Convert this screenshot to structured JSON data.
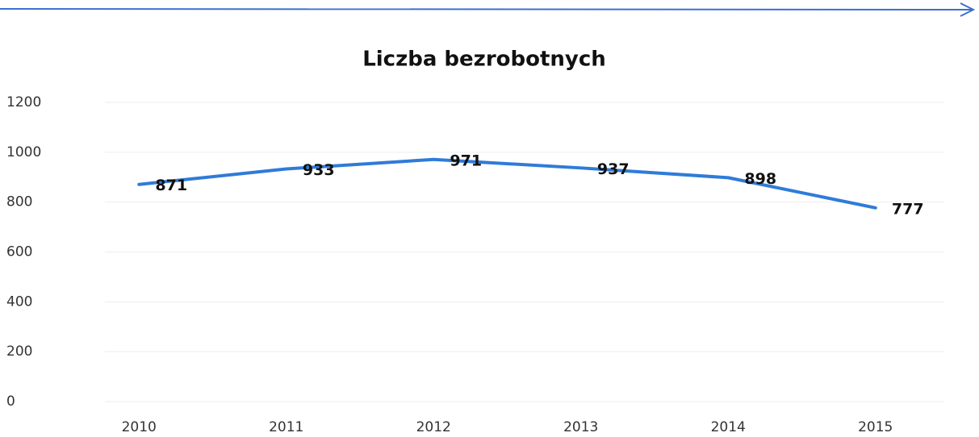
{
  "chart_data": {
    "type": "line",
    "title": "Liczba bezrobotnych",
    "categories": [
      "2010",
      "2011",
      "2012",
      "2013",
      "2014",
      "2015"
    ],
    "series": [
      {
        "name": "Liczba bezrobotnych",
        "color": "#2f7bd8",
        "values": [
          871,
          933,
          971,
          937,
          898,
          777
        ]
      }
    ],
    "ylim": [
      0,
      1200
    ],
    "yticks": [
      0,
      200,
      400,
      600,
      800,
      1000,
      1200
    ],
    "grid": true
  }
}
